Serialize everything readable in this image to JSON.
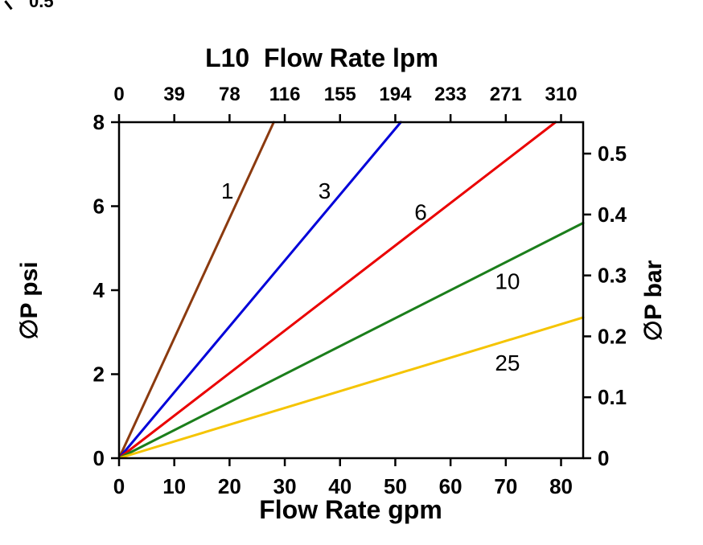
{
  "corner_fragment": "0.5",
  "chart_data": {
    "type": "line",
    "title": "L10  Flow Rate lpm",
    "xlabel": "Flow Rate gpm",
    "ylabel_left": "∅P psi",
    "ylabel_right": "∅P bar",
    "grid": false,
    "background": "#FFFFFF",
    "axis_color": "#000000",
    "x_axis": {
      "unit": "gpm",
      "min": 0,
      "max": 84,
      "ticks": [
        0,
        10,
        20,
        30,
        40,
        50,
        60,
        70,
        80
      ],
      "tick_labels": [
        "0",
        "10",
        "20",
        "30",
        "40",
        "50",
        "60",
        "70",
        "80"
      ]
    },
    "top_axis": {
      "unit": "lpm",
      "tick_positions_gpm": [
        0,
        10,
        20,
        30,
        40,
        50,
        60,
        70,
        80
      ],
      "tick_labels": [
        "0",
        "39",
        "78",
        "116",
        "155",
        "194",
        "233",
        "271",
        "310"
      ]
    },
    "y_axis_left": {
      "unit": "psi",
      "min": 0,
      "max": 8,
      "ticks": [
        0,
        2,
        4,
        6,
        8
      ],
      "tick_labels": [
        "0",
        "2",
        "4",
        "6",
        "8"
      ]
    },
    "y_axis_right": {
      "unit": "bar",
      "psi_per_bar": 14.5038,
      "ticks": [
        0,
        0.1,
        0.2,
        0.3,
        0.4,
        0.5
      ],
      "tick_labels": [
        "0",
        "0.1",
        "0.2",
        "0.3",
        "0.4",
        "0.5"
      ]
    },
    "series": [
      {
        "name": "1",
        "color": "#8B3A0F",
        "points": [
          [
            0,
            0
          ],
          [
            28,
            8
          ]
        ],
        "label_at": [
          19.6,
          6.35
        ]
      },
      {
        "name": "3",
        "color": "#0000D9",
        "points": [
          [
            0,
            0
          ],
          [
            51,
            8
          ]
        ],
        "label_at": [
          37.2,
          6.35
        ]
      },
      {
        "name": "6",
        "color": "#EA0000",
        "points": [
          [
            0,
            0
          ],
          [
            79,
            8
          ]
        ],
        "label_at": [
          54.6,
          5.85
        ]
      },
      {
        "name": "10",
        "color": "#1B7E1B",
        "points": [
          [
            0,
            0
          ],
          [
            84,
            5.6
          ]
        ],
        "label_at": [
          70.3,
          4.2
        ]
      },
      {
        "name": "25",
        "color": "#F5C400",
        "points": [
          [
            0,
            0
          ],
          [
            84,
            3.35
          ]
        ],
        "label_at": [
          70.3,
          2.26
        ]
      }
    ]
  }
}
